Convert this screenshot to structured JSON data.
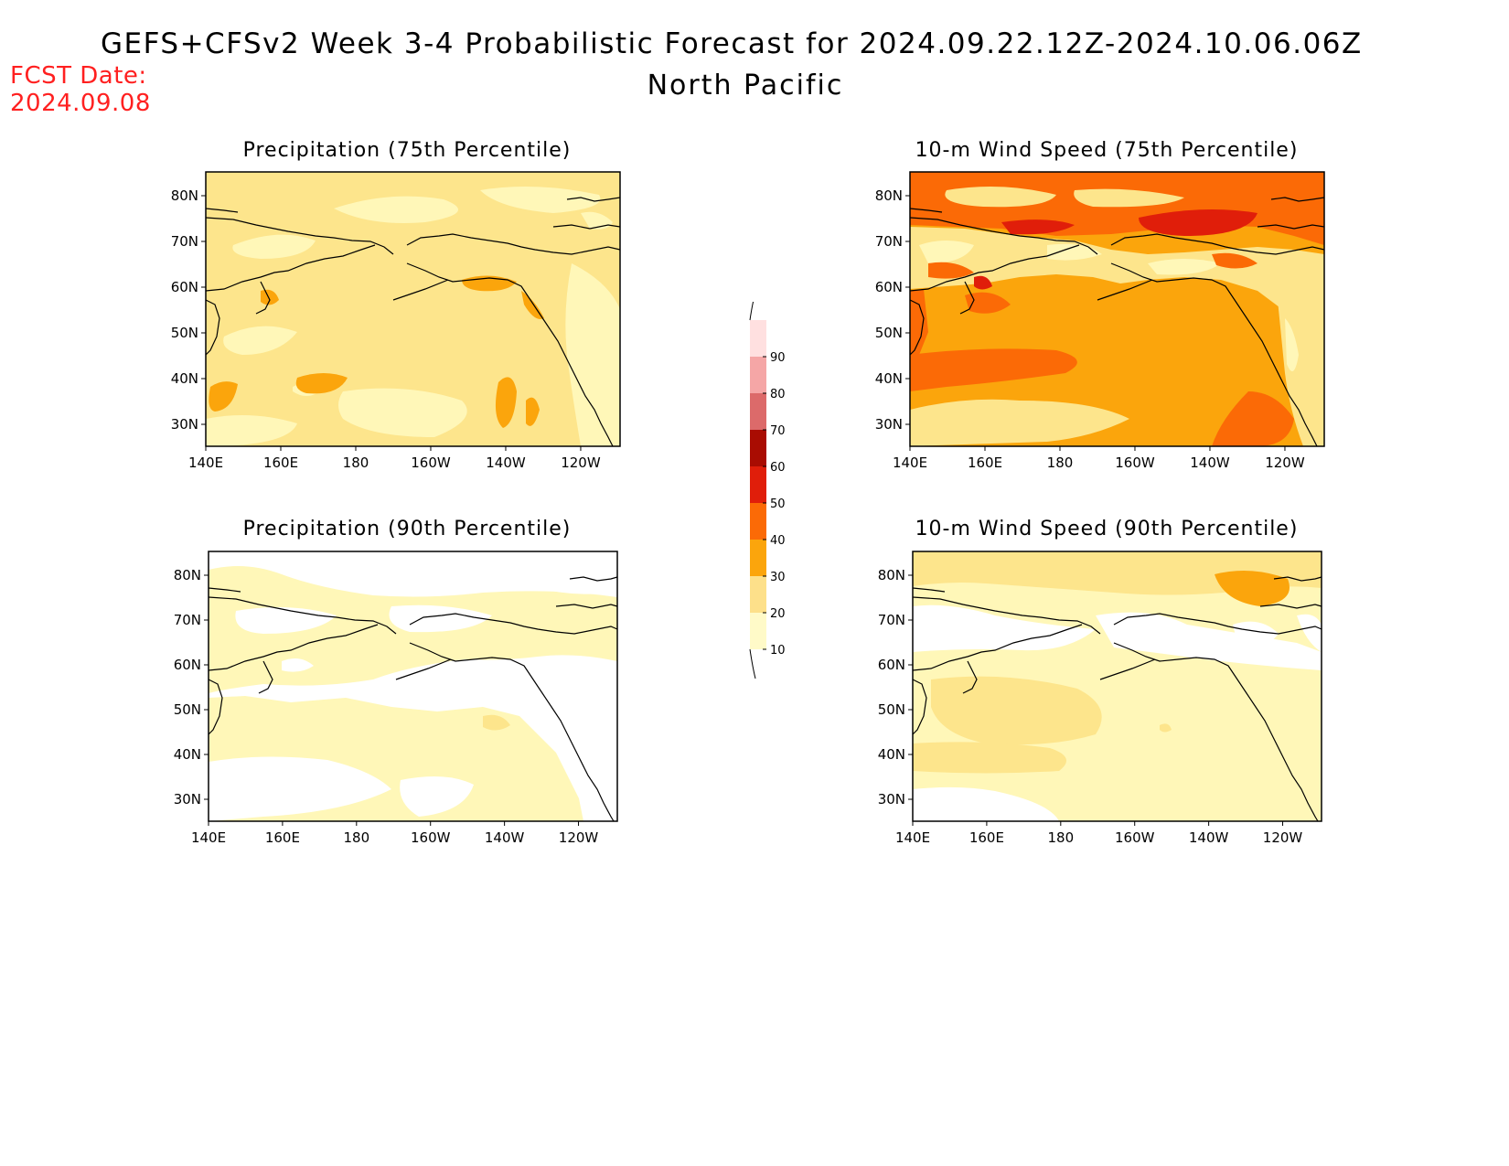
{
  "header": {
    "title": "GEFS+CFSv2 Week 3-4 Probabilistic Forecast for 2024.09.22.12Z-2024.10.06.06Z",
    "region": "North Pacific",
    "fcst_label": "FCST Date:",
    "fcst_date": "2024.09.08"
  },
  "panels": [
    {
      "id": "precip75",
      "title": "Precipitation (75th Percentile)"
    },
    {
      "id": "wind75",
      "title": "10-m Wind Speed (75th Percentile)"
    },
    {
      "id": "precip90",
      "title": "Precipitation (90th Percentile)"
    },
    {
      "id": "wind90",
      "title": "10-m Wind Speed (90th Percentile)"
    }
  ],
  "axes": {
    "lon_ticks": [
      "140E",
      "160E",
      "180",
      "160W",
      "140W",
      "120W"
    ],
    "lat_ticks": [
      "80N",
      "70N",
      "60N",
      "50N",
      "40N",
      "30N"
    ]
  },
  "colorbar": {
    "levels": [
      {
        "label": "10",
        "color": "#fffac8"
      },
      {
        "label": "20",
        "color": "#fde08a"
      },
      {
        "label": "30",
        "color": "#fba50c"
      },
      {
        "label": "40",
        "color": "#fb6a06"
      },
      {
        "label": "50",
        "color": "#e01e0a"
      },
      {
        "label": "60",
        "color": "#a90c02"
      },
      {
        "label": "70",
        "color": "#dc6a6a"
      },
      {
        "label": "80",
        "color": "#f5a6a6"
      },
      {
        "label": "90",
        "color": "#ffe0e0"
      }
    ]
  },
  "colors": {
    "white": "#ffffff",
    "c10": "#fff7b8",
    "c20": "#fde58c",
    "c30": "#fba50c",
    "c40": "#fb6a06",
    "c50": "#e01e0a",
    "c60": "#a90c02",
    "fcst_red": "#ff2020"
  }
}
